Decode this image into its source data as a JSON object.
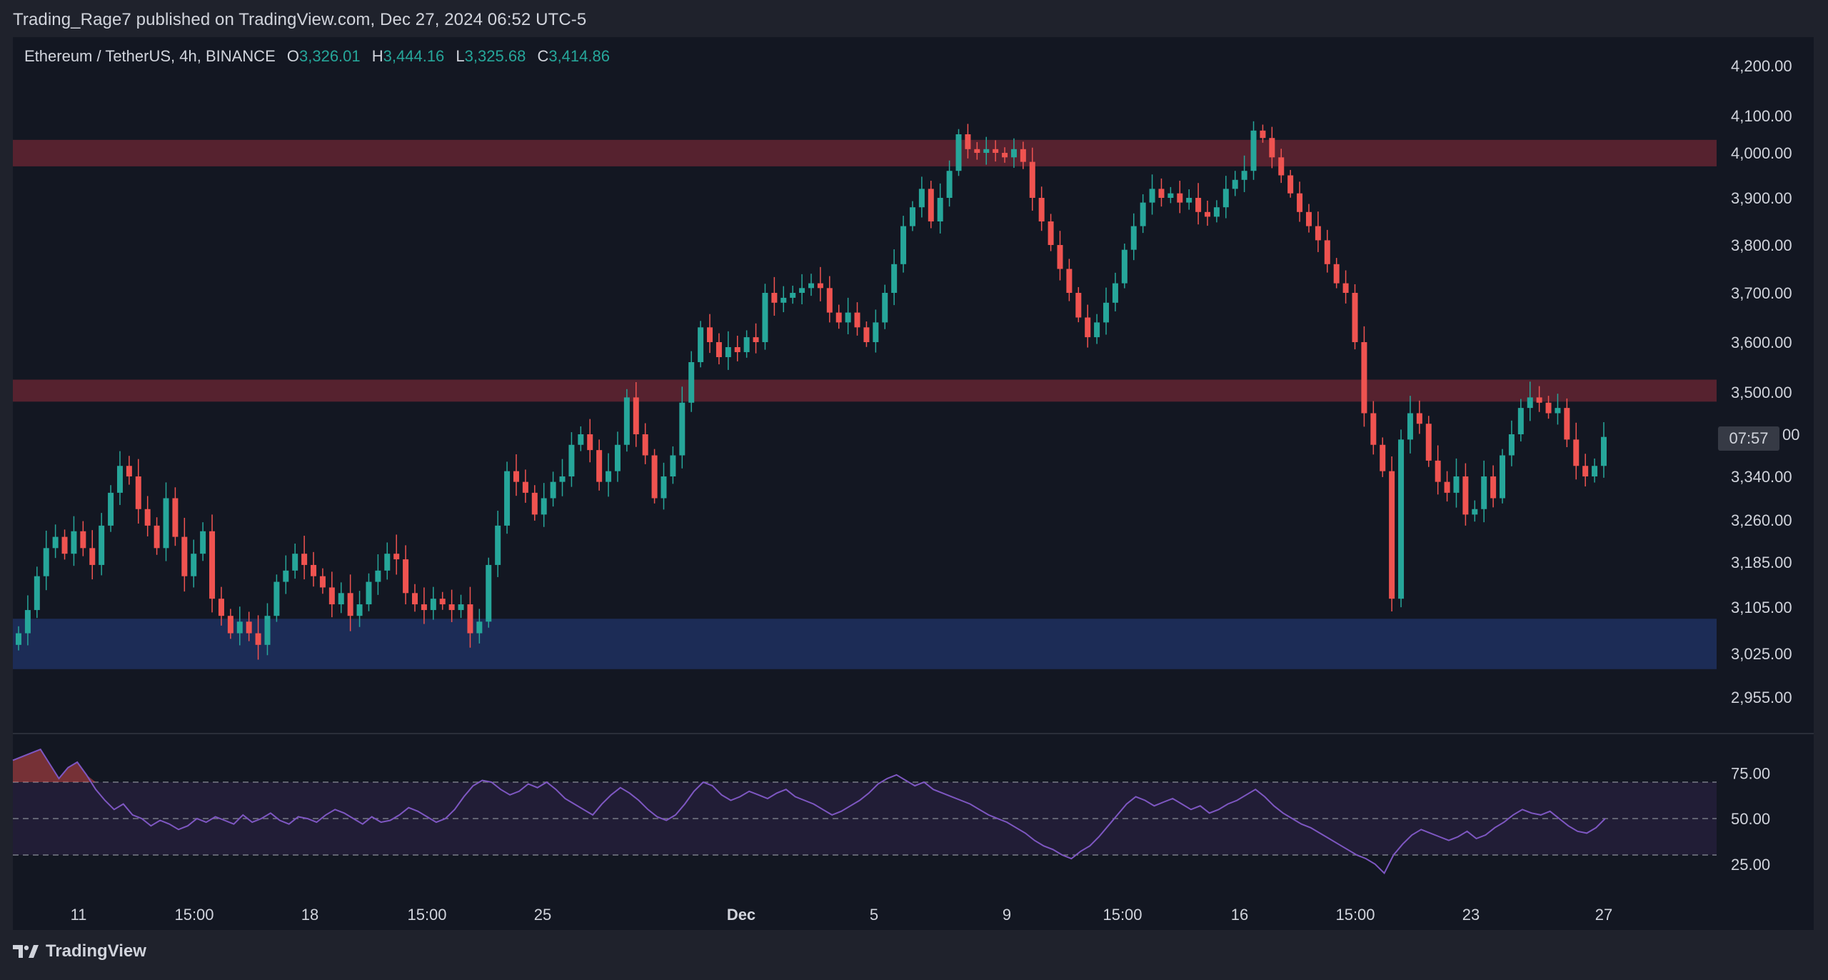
{
  "publisher_line": "Trading_Rage7 published on TradingView.com, Dec 27, 2024 06:52 UTC-5",
  "symbol_line": "Ethereum / TetherUS, 4h, BINANCE",
  "ohlc": {
    "o_label": "O",
    "o": "3,326.01",
    "h_label": "H",
    "h": "3,444.16",
    "l_label": "L",
    "l": "3,325.68",
    "c_label": "C",
    "c": "3,414.86"
  },
  "countdown": "07:57",
  "hidden_price_suffix": "00",
  "footer_brand": "TradingView",
  "colors": {
    "background": "#131722",
    "up": "#26a69a",
    "down": "#ef5350",
    "resistance_zone": "#5a2330",
    "support_zone": "#1c2d5a",
    "rsi_line": "#7e57c2",
    "rsi_band": "#211d36"
  },
  "icons": {
    "brand_logo": "tradingview-logo-icon"
  },
  "chart_data": [
    {
      "type": "candlestick",
      "title": "",
      "y_axis_ticks": [
        "4,200.00",
        "4,100.00",
        "4,000.00",
        "3,900.00",
        "3,800.00",
        "3,700.00",
        "3,600.00",
        "3,500.00",
        "3,340.00",
        "3,260.00",
        "3,185.00",
        "3,105.00",
        "3,025.00",
        "2,955.00"
      ],
      "y_axis_tick_values": [
        4200,
        4100,
        4000,
        3900,
        3800,
        3700,
        3600,
        3500,
        3340,
        3260,
        3185,
        3105,
        3025,
        2955
      ],
      "x_axis_ticks": [
        "11",
        "15:00",
        "18",
        "15:00",
        "25",
        "Dec",
        "5",
        "9",
        "15:00",
        "16",
        "15:00",
        "23",
        "27"
      ],
      "zones": [
        {
          "name": "resistance-upper",
          "from": 3970,
          "to": 4035
        },
        {
          "name": "resistance-lower",
          "from": 3482,
          "to": 3525
        },
        {
          "name": "support",
          "from": 3000,
          "to": 3085
        }
      ],
      "path_close": [
        3060,
        3100,
        3160,
        3210,
        3230,
        3200,
        3240,
        3210,
        3180,
        3250,
        3310,
        3360,
        3340,
        3280,
        3250,
        3210,
        3300,
        3230,
        3160,
        3200,
        3240,
        3120,
        3090,
        3060,
        3080,
        3060,
        3040,
        3090,
        3150,
        3170,
        3200,
        3180,
        3160,
        3140,
        3110,
        3130,
        3090,
        3110,
        3150,
        3170,
        3200,
        3190,
        3130,
        3110,
        3100,
        3120,
        3110,
        3100,
        3110,
        3060,
        3080,
        3180,
        3250,
        3350,
        3330,
        3310,
        3270,
        3300,
        3330,
        3340,
        3400,
        3420,
        3390,
        3330,
        3350,
        3400,
        3490,
        3420,
        3380,
        3300,
        3340,
        3380,
        3480,
        3560,
        3630,
        3600,
        3570,
        3590,
        3580,
        3610,
        3600,
        3700,
        3680,
        3690,
        3700,
        3710,
        3720,
        3710,
        3660,
        3640,
        3660,
        3630,
        3600,
        3640,
        3700,
        3760,
        3840,
        3880,
        3920,
        3850,
        3900,
        3960,
        4050,
        4010,
        4000,
        4010,
        4000,
        3990,
        4010,
        3980,
        3900,
        3850,
        3800,
        3750,
        3700,
        3650,
        3610,
        3640,
        3680,
        3720,
        3790,
        3840,
        3890,
        3920,
        3900,
        3910,
        3890,
        3900,
        3870,
        3860,
        3880,
        3920,
        3940,
        3960,
        4060,
        4040,
        3990,
        3950,
        3910,
        3870,
        3840,
        3810,
        3760,
        3720,
        3700,
        3600,
        3460,
        3400,
        3350,
        3120,
        3410,
        3460,
        3440,
        3370,
        3330,
        3310,
        3340,
        3270,
        3280,
        3340,
        3300,
        3380,
        3420,
        3470,
        3490,
        3480,
        3460,
        3470,
        3410,
        3360,
        3340,
        3360,
        3415
      ],
      "rsi": {
        "levels": [
          70,
          50,
          30
        ],
        "tick_labels": [
          "75.00",
          "50.00",
          "25.00"
        ],
        "tick_values": [
          75,
          50,
          25
        ],
        "values": [
          82,
          84,
          86,
          88,
          80,
          72,
          78,
          81,
          74,
          66,
          60,
          55,
          58,
          52,
          50,
          46,
          49,
          47,
          44,
          46,
          50,
          48,
          51,
          49,
          47,
          52,
          48,
          50,
          53,
          49,
          47,
          51,
          50,
          48,
          52,
          55,
          53,
          50,
          47,
          51,
          48,
          49,
          52,
          56,
          54,
          51,
          48,
          50,
          55,
          62,
          68,
          71,
          70,
          66,
          63,
          65,
          69,
          67,
          70,
          66,
          61,
          58,
          55,
          52,
          58,
          63,
          67,
          64,
          60,
          55,
          51,
          49,
          52,
          58,
          65,
          70,
          68,
          63,
          60,
          62,
          65,
          63,
          61,
          64,
          66,
          62,
          60,
          58,
          55,
          52,
          54,
          57,
          60,
          64,
          69,
          72,
          74,
          71,
          68,
          70,
          66,
          64,
          62,
          60,
          58,
          55,
          52,
          50,
          48,
          45,
          42,
          38,
          35,
          33,
          30,
          28,
          32,
          35,
          40,
          46,
          52,
          58,
          62,
          60,
          57,
          59,
          61,
          58,
          55,
          57,
          53,
          55,
          58,
          60,
          63,
          66,
          62,
          57,
          53,
          50,
          47,
          45,
          42,
          39,
          36,
          33,
          30,
          28,
          25,
          20,
          30,
          36,
          41,
          44,
          42,
          40,
          38,
          40,
          43,
          39,
          41,
          45,
          48,
          52,
          55,
          53,
          52,
          54,
          50,
          46,
          43,
          42,
          45,
          50
        ]
      }
    }
  ]
}
